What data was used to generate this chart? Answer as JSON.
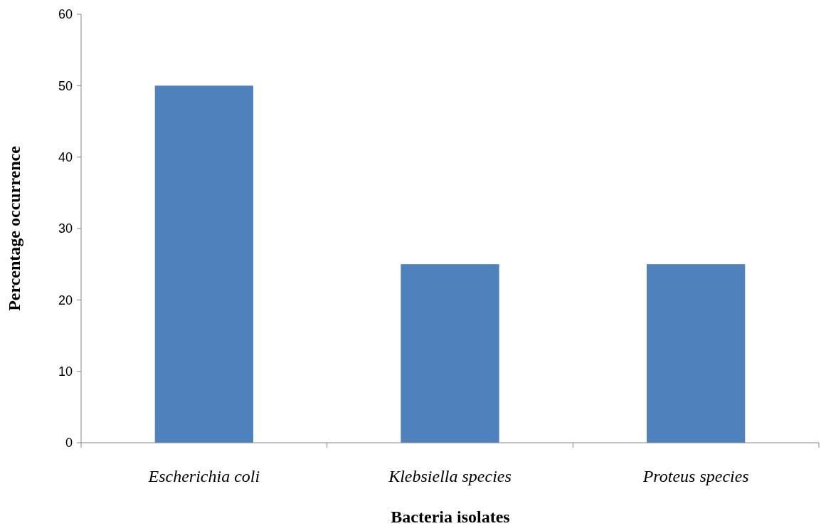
{
  "chart_data": {
    "type": "bar",
    "xlabel": "Bacteria isolates",
    "ylabel": "Percentage occurrence",
    "categories": [
      "Escherichia coli",
      "Klebsiella species",
      "Proteus species"
    ],
    "values": [
      50,
      25,
      25
    ],
    "color": "#4f81bd",
    "ylim": [
      0,
      60
    ],
    "yticks": [
      0,
      10,
      20,
      30,
      40,
      50,
      60
    ],
    "grid": false
  }
}
